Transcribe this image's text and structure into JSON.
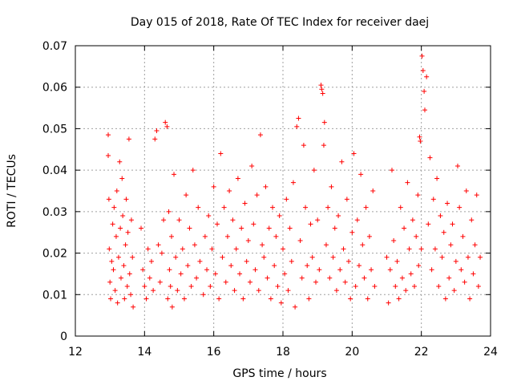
{
  "chart_data": {
    "type": "scatter",
    "title": "Day 015 of 2018, Rate Of TEC Index for receiver daej",
    "xlabel": "GPS time / hours",
    "ylabel": "ROTI / TECUs",
    "xlim": [
      12,
      24
    ],
    "ylim": [
      0,
      0.07
    ],
    "xticks": [
      12,
      14,
      16,
      18,
      20,
      22,
      24
    ],
    "yticks": [
      0,
      0.01,
      0.02,
      0.03,
      0.04,
      0.05,
      0.06,
      0.07
    ],
    "xtick_labels": [
      "12",
      "14",
      "16",
      "18",
      "20",
      "22",
      "24"
    ],
    "ytick_labels": [
      "0",
      "0.01",
      "0.02",
      "0.03",
      "0.04",
      "0.05",
      "0.06",
      "0.07"
    ],
    "grid": true,
    "marker": "+",
    "color": "#ff0000",
    "series": [
      {
        "name": "ROTI",
        "x": [
          12.95,
          12.95,
          12.97,
          12.98,
          13.0,
          13.02,
          13.05,
          13.08,
          13.1,
          13.12,
          13.15,
          13.18,
          13.2,
          13.22,
          13.25,
          13.28,
          13.3,
          13.32,
          13.35,
          13.37,
          13.4,
          13.42,
          13.45,
          13.47,
          13.5,
          13.52,
          13.55,
          13.57,
          13.6,
          13.62,
          13.65,
          13.67,
          13.9,
          13.95,
          14.0,
          14.05,
          14.1,
          14.15,
          14.2,
          14.25,
          14.3,
          14.35,
          14.4,
          14.45,
          14.5,
          14.55,
          14.6,
          14.65,
          14.67,
          14.7,
          14.72,
          14.75,
          14.78,
          14.8,
          14.85,
          14.9,
          14.95,
          15.0,
          15.05,
          15.1,
          15.15,
          15.2,
          15.25,
          15.3,
          15.35,
          15.4,
          15.45,
          15.5,
          15.55,
          15.6,
          15.7,
          15.75,
          15.8,
          15.85,
          15.9,
          15.95,
          16.0,
          16.05,
          16.1,
          16.15,
          16.2,
          16.25,
          16.3,
          16.35,
          16.4,
          16.45,
          16.5,
          16.55,
          16.6,
          16.65,
          16.7,
          16.75,
          16.8,
          16.85,
          16.9,
          16.95,
          17.0,
          17.05,
          17.1,
          17.15,
          17.2,
          17.25,
          17.3,
          17.35,
          17.4,
          17.45,
          17.5,
          17.55,
          17.6,
          17.65,
          17.7,
          17.75,
          17.8,
          17.85,
          17.9,
          17.95,
          18.0,
          18.05,
          18.1,
          18.15,
          18.2,
          18.25,
          18.3,
          18.35,
          18.4,
          18.45,
          18.5,
          18.55,
          18.6,
          18.65,
          18.7,
          18.75,
          18.8,
          18.85,
          18.9,
          18.95,
          19.0,
          19.05,
          19.1,
          19.12,
          19.15,
          19.18,
          19.2,
          19.25,
          19.3,
          19.35,
          19.4,
          19.45,
          19.5,
          19.55,
          19.6,
          19.65,
          19.7,
          19.75,
          19.8,
          19.85,
          19.9,
          19.95,
          20.0,
          20.05,
          20.1,
          20.15,
          20.2,
          20.25,
          20.3,
          20.35,
          20.4,
          20.45,
          20.5,
          20.55,
          20.6,
          20.65,
          21.0,
          21.05,
          21.1,
          21.15,
          21.2,
          21.25,
          21.3,
          21.35,
          21.4,
          21.45,
          21.5,
          21.55,
          21.6,
          21.65,
          21.7,
          21.75,
          21.8,
          21.85,
          21.9,
          21.92,
          21.95,
          21.97,
          22.0,
          22.02,
          22.05,
          22.08,
          22.1,
          22.15,
          22.2,
          22.25,
          22.3,
          22.35,
          22.4,
          22.45,
          22.5,
          22.55,
          22.6,
          22.65,
          22.7,
          22.75,
          22.8,
          22.85,
          22.9,
          22.95,
          23.0,
          23.05,
          23.1,
          23.15,
          23.2,
          23.25,
          23.3,
          23.35,
          23.4,
          23.45,
          23.5,
          23.55,
          23.6,
          23.65,
          23.7
        ],
        "y": [
          0.0485,
          0.0435,
          0.033,
          0.021,
          0.013,
          0.009,
          0.018,
          0.027,
          0.016,
          0.031,
          0.011,
          0.024,
          0.035,
          0.008,
          0.019,
          0.042,
          0.026,
          0.014,
          0.038,
          0.029,
          0.017,
          0.009,
          0.022,
          0.033,
          0.012,
          0.025,
          0.0475,
          0.015,
          0.01,
          0.028,
          0.019,
          0.007,
          0.026,
          0.016,
          0.012,
          0.009,
          0.021,
          0.014,
          0.018,
          0.011,
          0.0475,
          0.0495,
          0.022,
          0.013,
          0.02,
          0.028,
          0.0515,
          0.0505,
          0.009,
          0.03,
          0.016,
          0.012,
          0.024,
          0.007,
          0.039,
          0.019,
          0.011,
          0.028,
          0.015,
          0.021,
          0.009,
          0.034,
          0.017,
          0.026,
          0.012,
          0.04,
          0.022,
          0.014,
          0.031,
          0.018,
          0.01,
          0.024,
          0.016,
          0.029,
          0.012,
          0.021,
          0.036,
          0.015,
          0.027,
          0.009,
          0.044,
          0.019,
          0.031,
          0.013,
          0.024,
          0.035,
          0.017,
          0.028,
          0.011,
          0.021,
          0.038,
          0.015,
          0.026,
          0.009,
          0.032,
          0.018,
          0.023,
          0.013,
          0.041,
          0.027,
          0.016,
          0.034,
          0.011,
          0.0485,
          0.022,
          0.019,
          0.036,
          0.014,
          0.026,
          0.009,
          0.031,
          0.017,
          0.024,
          0.012,
          0.029,
          0.008,
          0.021,
          0.015,
          0.033,
          0.011,
          0.026,
          0.018,
          0.037,
          0.007,
          0.0505,
          0.0525,
          0.023,
          0.014,
          0.046,
          0.031,
          0.017,
          0.009,
          0.027,
          0.019,
          0.04,
          0.013,
          0.028,
          0.016,
          0.0605,
          0.0595,
          0.0585,
          0.046,
          0.0515,
          0.022,
          0.031,
          0.014,
          0.036,
          0.019,
          0.026,
          0.011,
          0.029,
          0.016,
          0.042,
          0.021,
          0.013,
          0.033,
          0.018,
          0.009,
          0.025,
          0.044,
          0.012,
          0.028,
          0.017,
          0.039,
          0.022,
          0.014,
          0.031,
          0.009,
          0.024,
          0.016,
          0.035,
          0.012,
          0.019,
          0.008,
          0.016,
          0.04,
          0.023,
          0.012,
          0.018,
          0.009,
          0.031,
          0.014,
          0.026,
          0.011,
          0.037,
          0.021,
          0.015,
          0.028,
          0.012,
          0.024,
          0.034,
          0.017,
          0.048,
          0.047,
          0.021,
          0.0675,
          0.064,
          0.059,
          0.0545,
          0.0625,
          0.027,
          0.043,
          0.016,
          0.033,
          0.021,
          0.038,
          0.012,
          0.029,
          0.019,
          0.025,
          0.009,
          0.032,
          0.014,
          0.022,
          0.027,
          0.011,
          0.018,
          0.041,
          0.031,
          0.016,
          0.024,
          0.013,
          0.035,
          0.019,
          0.009,
          0.028,
          0.015,
          0.022,
          0.034,
          0.012,
          0.019
        ]
      }
    ]
  }
}
